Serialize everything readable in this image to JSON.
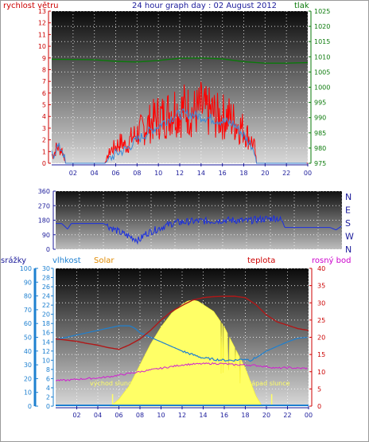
{
  "header": {
    "left_label": "rychlost větru",
    "title": "24 hour graph day : 02 August 2012",
    "right_label": "tlak"
  },
  "colors": {
    "wind": "#ff0000",
    "wind_avg": "#3a8ad8",
    "pressure": "#0a7a0a",
    "direction": "#1a2fe0",
    "humidity": "#1e80d0",
    "temperature": "#b01818",
    "dewpoint": "#d020d0",
    "solar": "#ffff66",
    "rain": "#1e80d0",
    "axis_red": "#cc0000",
    "axis_navy": "#1a1a9a",
    "axis_green": "#0a7a0a",
    "axis_orange": "#e08a00",
    "axis_magenta": "#cc00cc"
  },
  "x_ticks": [
    "02",
    "04",
    "06",
    "08",
    "10",
    "12",
    "14",
    "16",
    "18",
    "20",
    "22",
    "00"
  ],
  "chart_data": [
    {
      "type": "line",
      "name": "wind_pressure",
      "x_unit": "hour",
      "xlim": [
        0,
        24
      ],
      "left_axis": {
        "label": "rychlost větru",
        "ylim": [
          0,
          13
        ],
        "ticks": [
          0,
          1,
          2,
          3,
          4,
          5,
          6,
          7,
          8,
          9,
          10,
          11,
          12,
          13
        ]
      },
      "right_axis": {
        "label": "tlak",
        "ylim": [
          975,
          1025
        ],
        "ticks": [
          975,
          980,
          985,
          990,
          995,
          1000,
          1005,
          1010,
          1015,
          1020,
          1025
        ]
      },
      "series": [
        {
          "axis": "left",
          "style": "red-spiky",
          "x": [
            0.2,
            0.5,
            1,
            1.3,
            2,
            3,
            4,
            5,
            5.5,
            6,
            6.5,
            7,
            7.5,
            8,
            8.5,
            9,
            9.5,
            10,
            10.5,
            11,
            11.5,
            12,
            12.5,
            13,
            13.5,
            14,
            14.5,
            15,
            15.5,
            16,
            16.5,
            17,
            17.5,
            18,
            18.5,
            19,
            19.2,
            20,
            22,
            24
          ],
          "y": [
            1.0,
            2.0,
            1.5,
            0,
            0,
            0,
            0,
            0,
            1.5,
            2.0,
            2.5,
            2.0,
            3.0,
            3.5,
            4.0,
            4.5,
            5.0,
            5.5,
            5.5,
            6.0,
            6.5,
            6.0,
            6.5,
            6.0,
            6.0,
            6.5,
            6.0,
            6.0,
            5.5,
            5.5,
            5.5,
            5.0,
            4.5,
            4.0,
            3.0,
            2.0,
            0,
            0,
            0,
            0
          ]
        },
        {
          "axis": "left",
          "style": "blue-avg",
          "x": [
            0.2,
            0.5,
            1,
            1.3,
            2,
            5,
            6,
            7,
            8,
            9,
            10,
            11,
            12,
            13,
            14,
            15,
            16,
            17,
            18,
            18.5,
            19,
            19.2,
            24
          ],
          "y": [
            0.8,
            1.4,
            1.2,
            0,
            0,
            0,
            0.8,
            1.2,
            2.0,
            2.6,
            3.2,
            3.8,
            4.2,
            4.2,
            4.0,
            3.8,
            3.6,
            3.4,
            2.4,
            1.8,
            1.2,
            0,
            0
          ]
        },
        {
          "axis": "right",
          "style": "green",
          "x": [
            0,
            2,
            4,
            6,
            8,
            10,
            12,
            14,
            16,
            18,
            20,
            22,
            24
          ],
          "y": [
            1009.2,
            1009.1,
            1009.0,
            1008.5,
            1008.3,
            1008.8,
            1009.5,
            1009.6,
            1009.3,
            1008.4,
            1007.9,
            1007.9,
            1008.1
          ]
        }
      ]
    },
    {
      "type": "line",
      "name": "wind_direction",
      "x_unit": "hour",
      "xlim": [
        0,
        24
      ],
      "left_axis": {
        "ylim": [
          0,
          360
        ],
        "ticks": [
          0,
          90,
          180,
          270,
          360
        ]
      },
      "right_axis": {
        "labels": [
          "N",
          "W",
          "S",
          "E",
          "N"
        ]
      },
      "series": [
        {
          "axis": "left",
          "style": "navy",
          "x": [
            0,
            0.5,
            1,
            1.3,
            2,
            3,
            4,
            4.5,
            5,
            5.5,
            6,
            6.5,
            7,
            7.5,
            8,
            8.5,
            9,
            10,
            11,
            12,
            13,
            14,
            15,
            16,
            17,
            18,
            18.5,
            19,
            19.2,
            20,
            21,
            22,
            23,
            23.5,
            24
          ],
          "y": [
            160,
            160,
            125,
            160,
            160,
            160,
            160,
            140,
            120,
            100,
            85,
            70,
            55,
            95,
            110,
            125,
            140,
            165,
            170,
            175,
            175,
            180,
            180,
            175,
            185,
            190,
            195,
            175,
            135,
            135,
            135,
            135,
            135,
            120,
            145
          ]
        }
      ]
    },
    {
      "type": "area",
      "name": "temp_humidity_solar",
      "x_unit": "hour",
      "xlim": [
        0,
        24
      ],
      "left_axes": [
        {
          "label": "srážky",
          "ylim": [
            0,
            100
          ],
          "ticks": [
            0,
            10,
            20,
            30,
            40,
            50,
            60,
            70,
            80,
            90,
            100
          ]
        },
        {
          "label": "vlhkost",
          "ylim": [
            0,
            30
          ],
          "ticks": [
            0,
            2,
            4,
            6,
            8,
            10,
            12,
            14,
            16,
            18,
            20,
            22,
            24,
            26,
            28,
            30
          ]
        },
        {
          "label": "Solar"
        }
      ],
      "right_axis": {
        "label": "teplota",
        "ylim": [
          0,
          40
        ],
        "ticks": [
          0,
          5,
          10,
          15,
          20,
          25,
          30,
          35,
          40
        ]
      },
      "right_label2": "rosný bod",
      "annotations": [
        "východ slunce",
        "západ slunce"
      ],
      "series": [
        {
          "axis": "right",
          "name": "teplota",
          "x": [
            0,
            1,
            2,
            3,
            4,
            5,
            6,
            7,
            8,
            9,
            10,
            11,
            12,
            13,
            14,
            15,
            16,
            17,
            18,
            19,
            20,
            21,
            22,
            23,
            24
          ],
          "y": [
            19.5,
            19.2,
            18.8,
            18.2,
            17.7,
            17.0,
            16.5,
            17.8,
            19.5,
            22.0,
            25.0,
            27.5,
            29.2,
            30.8,
            31.5,
            31.8,
            31.9,
            31.9,
            31.5,
            29.5,
            26.5,
            24.5,
            23.5,
            22.5,
            22.0
          ]
        },
        {
          "axis": "right",
          "name": "rosný bod",
          "x": [
            0,
            1,
            2,
            3,
            4,
            5,
            6,
            7,
            8,
            9,
            10,
            11,
            12,
            13,
            14,
            15,
            16,
            17,
            18,
            19,
            20,
            21,
            22,
            23,
            24
          ],
          "y": [
            7.5,
            7.5,
            7.8,
            8.0,
            8.2,
            8.5,
            9.0,
            9.5,
            10.0,
            10.5,
            11.0,
            11.5,
            12.0,
            12.2,
            12.3,
            12.4,
            12.3,
            12.0,
            12.0,
            11.8,
            11.5,
            11.0,
            11.2,
            11.0,
            11.0
          ]
        },
        {
          "axis": "vlhkost",
          "name": "vlhkost",
          "x": [
            0,
            1,
            2,
            3,
            4,
            5,
            6,
            7,
            7.5,
            8,
            9,
            10,
            11,
            12,
            13,
            14,
            15,
            16,
            17,
            18,
            18.5,
            19,
            20,
            21,
            22,
            23,
            24
          ],
          "y": [
            14.5,
            15.0,
            15.5,
            16.0,
            16.5,
            17.0,
            17.5,
            17.5,
            17.0,
            16.0,
            15.0,
            14.0,
            13.0,
            12.0,
            11.2,
            10.5,
            10.2,
            10.0,
            10.0,
            10.3,
            10.0,
            10.5,
            12.0,
            13.0,
            14.0,
            14.8,
            15.0
          ]
        },
        {
          "axis": "right",
          "name": "Solar",
          "x": [
            5.2,
            6,
            7,
            8,
            9,
            10,
            11,
            12,
            12.5,
            13,
            13.5,
            14,
            15,
            16,
            17,
            18,
            18.5,
            19,
            19.6
          ],
          "y": [
            0,
            2,
            6,
            12,
            18,
            23,
            27,
            29.5,
            30.5,
            30.8,
            30.5,
            29.5,
            27.5,
            23,
            17,
            11,
            7,
            3,
            0
          ]
        }
      ]
    }
  ]
}
